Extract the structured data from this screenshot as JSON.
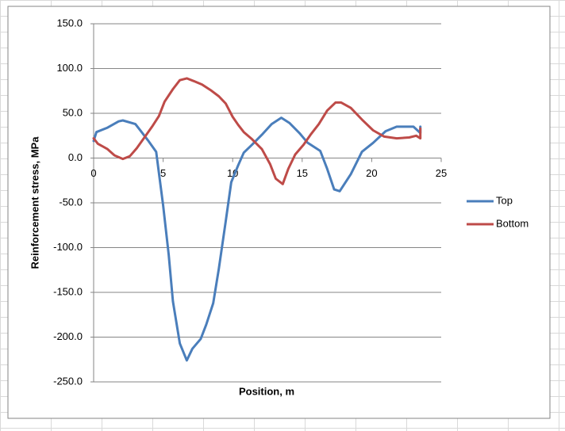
{
  "chart_data": {
    "type": "line",
    "x_label": "Position, m",
    "y_label": "Reinforcement stress, MPa",
    "xlim": [
      0,
      25
    ],
    "xticks": [
      0,
      5,
      10,
      15,
      20,
      25
    ],
    "ylim": [
      -250,
      150
    ],
    "yticks": [
      {
        "value": -250,
        "label": "-250.0"
      },
      {
        "value": -200,
        "label": "-200.0"
      },
      {
        "value": -150,
        "label": "-150.0"
      },
      {
        "value": -100,
        "label": "-100.0"
      },
      {
        "value": -50,
        "label": "-50.0"
      },
      {
        "value": 0,
        "label": "0.0"
      },
      {
        "value": 50,
        "label": "50.0"
      },
      {
        "value": 100,
        "label": "100.0"
      },
      {
        "value": 150,
        "label": "150.0"
      }
    ],
    "grid": true,
    "legend": "right",
    "series": [
      {
        "name": "Top",
        "color": "#4a7ebb",
        "x": [
          0,
          0.2,
          1.0,
          1.8,
          2.1,
          3.0,
          3.4,
          3.9,
          4.5,
          5.0,
          5.4,
          5.7,
          6.2,
          6.7,
          7.1,
          7.7,
          8.1,
          8.6,
          9.0,
          9.5,
          9.9,
          10.4,
          10.8,
          11.4,
          12.1,
          12.8,
          13.5,
          14.1,
          14.8,
          15.4,
          16.3,
          16.8,
          17.3,
          17.7,
          18.5,
          19.3,
          20.1,
          21.0,
          21.8,
          23.0,
          23.5,
          23.5
        ],
        "values": [
          19,
          29,
          34,
          41,
          42,
          38,
          30,
          20,
          7,
          -53,
          -108,
          -160,
          -207,
          -226,
          -213,
          -202,
          -186,
          -162,
          -124,
          -71,
          -27,
          -8,
          6,
          15,
          26,
          38,
          45,
          39,
          28,
          17,
          8,
          -12,
          -35,
          -37,
          -18,
          7,
          17,
          30,
          35,
          35,
          28,
          35
        ]
      },
      {
        "name": "Bottom",
        "color": "#be4b48",
        "x": [
          0,
          0.3,
          1.0,
          1.5,
          2.1,
          2.6,
          3.1,
          3.7,
          4.2,
          4.7,
          5.1,
          5.7,
          6.2,
          6.7,
          7.2,
          7.8,
          8.4,
          9.0,
          9.5,
          10.0,
          10.4,
          10.8,
          11.4,
          12.1,
          12.7,
          13.1,
          13.6,
          14.0,
          14.5,
          15.1,
          15.6,
          16.2,
          16.8,
          17.4,
          17.8,
          18.5,
          19.3,
          20.1,
          20.9,
          21.8,
          22.7,
          23.2,
          23.5,
          23.5
        ],
        "values": [
          22,
          16,
          10,
          3,
          -1,
          2,
          11,
          24,
          35,
          47,
          63,
          77,
          87,
          89,
          86,
          82,
          76,
          69,
          61,
          46,
          37,
          29,
          21,
          10,
          -7,
          -23,
          -29,
          -12,
          4,
          15,
          26,
          38,
          53,
          62,
          62,
          56,
          43,
          31,
          24,
          22,
          23,
          25,
          22,
          33
        ]
      }
    ]
  }
}
